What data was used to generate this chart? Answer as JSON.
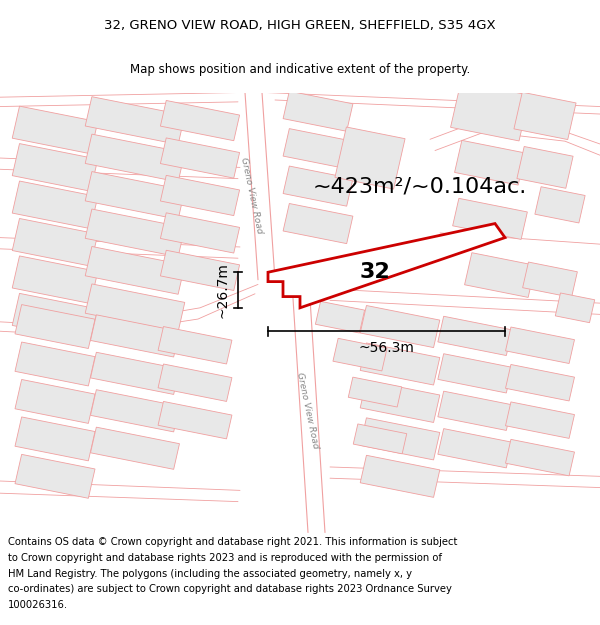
{
  "title_line1": "32, GRENO VIEW ROAD, HIGH GREEN, SHEFFIELD, S35 4GX",
  "title_line2": "Map shows position and indicative extent of the property.",
  "area_text": "~423m²/~0.104ac.",
  "label_32": "32",
  "dim_height": "~26.7m",
  "dim_width": "~56.3m",
  "footer_lines": [
    "Contains OS data © Crown copyright and database right 2021. This information is subject",
    "to Crown copyright and database rights 2023 and is reproduced with the permission of",
    "HM Land Registry. The polygons (including the associated geometry, namely x, y",
    "co-ordinates) are subject to Crown copyright and database rights 2023 Ordnance Survey",
    "100026316."
  ],
  "map_bg": "#ffffff",
  "road_line_color": "#f0a0a0",
  "building_fill": "#e8e8e8",
  "building_stroke": "#f0a0a0",
  "highlight_color": "#cc0000",
  "highlight_fill": "#ffffff",
  "road_label_color": "#888888",
  "title_fontsize": 9.5,
  "subtitle_fontsize": 8.5,
  "area_fontsize": 16,
  "label_fontsize": 16,
  "dim_fontsize": 10,
  "footer_fontsize": 7.2,
  "road_label_fontsize": 6.5
}
